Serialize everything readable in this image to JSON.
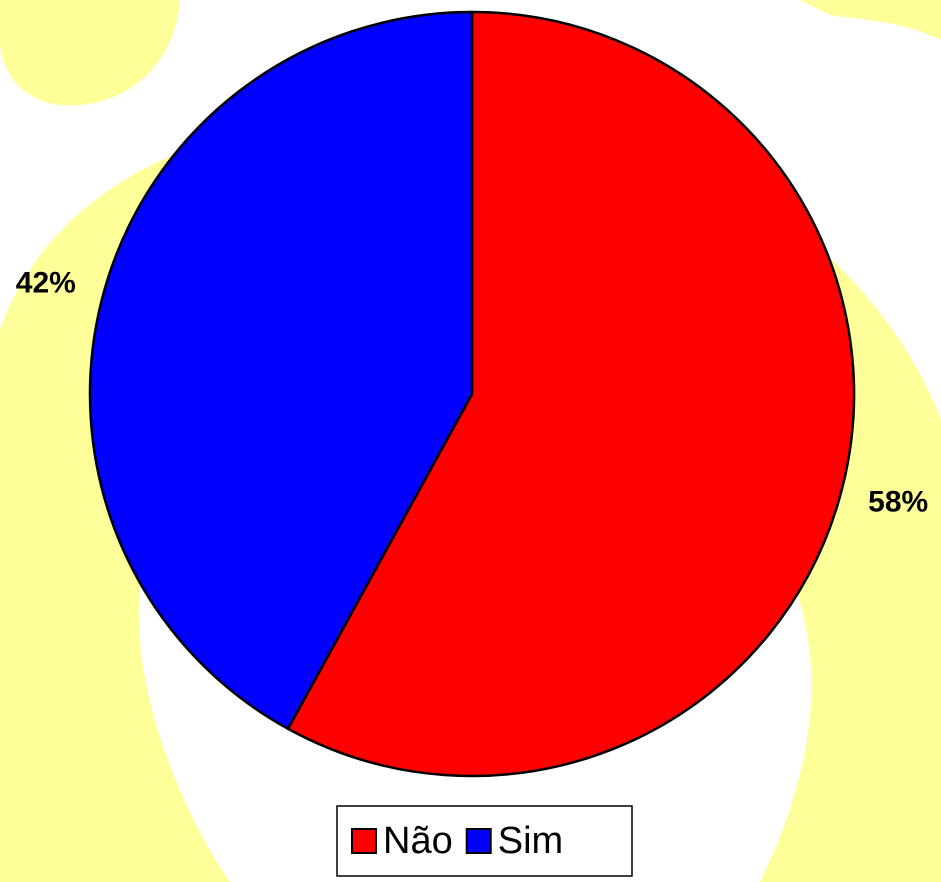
{
  "chart_data": {
    "type": "pie",
    "categories": [
      "Não",
      "Sim"
    ],
    "values": [
      58,
      42
    ],
    "value_labels": [
      "58%",
      "42%"
    ],
    "colors": [
      "#ff0000",
      "#0000ff"
    ],
    "legend": "bottom"
  }
}
